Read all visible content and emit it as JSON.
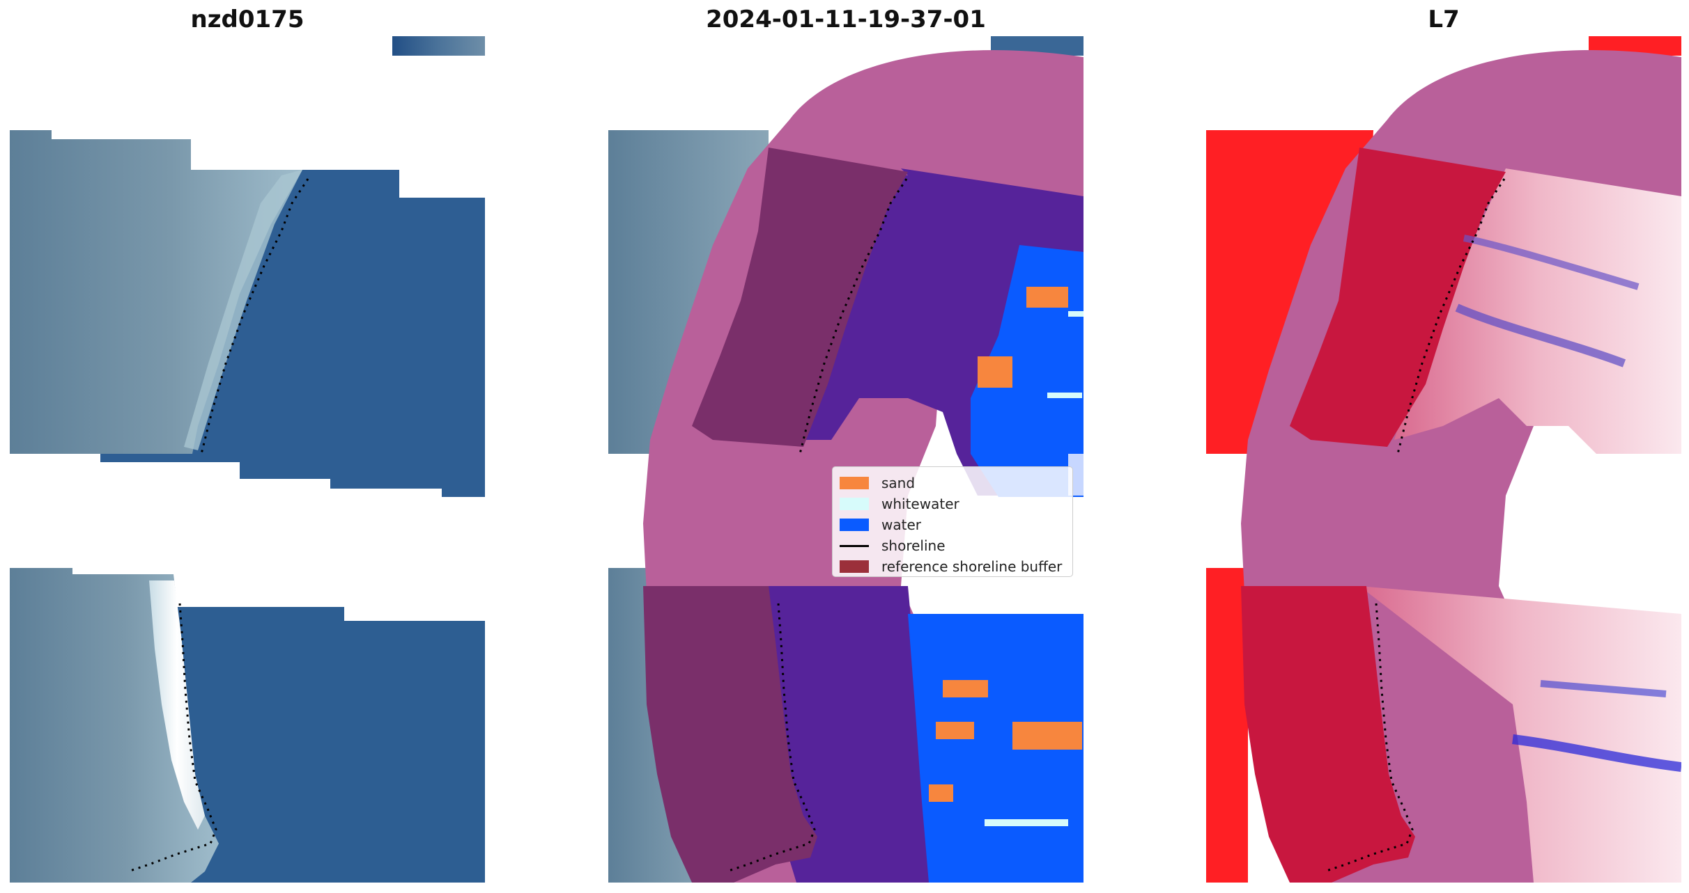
{
  "panels": {
    "left_title": "nzd0175",
    "middle_title": "2024-01-11-19-37-01",
    "right_title": "L7"
  },
  "legend": {
    "items": [
      {
        "label": "sand",
        "color": "#f7863e"
      },
      {
        "label": "whitewater",
        "color": "#d7fbfb"
      },
      {
        "label": "water",
        "color": "#0a5bff"
      },
      {
        "label": "shoreline",
        "color": "#000000"
      },
      {
        "label": "reference shoreline buffer",
        "color": "#9b2f3a"
      }
    ]
  },
  "colors": {
    "ocean": "#2d5d92",
    "land": "#6f8ea4",
    "class_water": "#0a5bff",
    "class_deep": "#56239a",
    "buffer": "#b9609a",
    "ref_buffer": "#7a2f6a",
    "ndwi_red": "#ff1f24",
    "ndwi_crimson": "#c8173f"
  }
}
